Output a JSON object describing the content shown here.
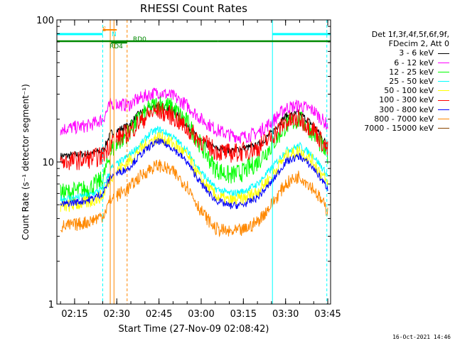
{
  "chart_data": {
    "type": "line",
    "title": "RHESSI Count Rates",
    "xlabel": "Start Time (27-Nov-09 02:08:42)",
    "ylabel": "Count Rate (s⁻¹ detector segment⁻¹)",
    "yscale": "log",
    "ylim": [
      1,
      100
    ],
    "xlim": [
      "02:08:42",
      "03:46:00"
    ],
    "x_ticks": [
      "02:15",
      "02:30",
      "02:45",
      "03:00",
      "03:15",
      "03:30",
      "03:45"
    ],
    "y_ticks": [
      "1",
      "10",
      "100"
    ],
    "legend_header": [
      "Det 1f,3f,4f,5f,6f,9f,",
      "FDecim 2, Att 0"
    ],
    "legend_position": "right",
    "x": [
      "02:10",
      "02:15",
      "02:20",
      "02:25",
      "02:28",
      "02:34",
      "02:38",
      "02:42",
      "02:45",
      "02:50",
      "02:55",
      "03:00",
      "03:05",
      "03:10",
      "03:15",
      "03:20",
      "03:25",
      "03:30",
      "03:35",
      "03:40",
      "03:45"
    ],
    "series": [
      {
        "name": "3 - 6 keV",
        "color": "#000000",
        "values": [
          11.0,
          11.2,
          11.5,
          12,
          16,
          18,
          22,
          24,
          25,
          23,
          18,
          14,
          12.5,
          12,
          12.5,
          13,
          16,
          21,
          22,
          18,
          13
        ]
      },
      {
        "name": "6 - 12 keV",
        "color": "#ff00ff",
        "values": [
          17,
          17.5,
          18,
          20,
          26,
          25,
          28,
          30,
          31,
          29,
          25,
          20,
          17,
          15.5,
          15,
          16,
          19,
          24,
          25,
          23,
          18
        ]
      },
      {
        "name": "12 - 25 keV",
        "color": "#00ff00",
        "values": [
          6,
          6.2,
          6.5,
          7.5,
          12,
          16,
          20,
          24,
          26,
          24,
          19,
          13,
          9,
          8,
          8.5,
          10,
          13,
          18,
          20,
          16,
          11
        ]
      },
      {
        "name": "25 - 50 keV",
        "color": "#00ffff",
        "values": [
          5.5,
          5.6,
          5.8,
          6.5,
          9,
          11,
          13,
          16,
          17,
          15,
          12,
          8.5,
          6.5,
          6,
          6.2,
          7,
          9,
          12,
          13,
          11,
          8
        ]
      },
      {
        "name": "50 - 100 keV",
        "color": "#ffff00",
        "values": [
          4.8,
          5,
          5.2,
          5.8,
          8,
          10,
          12,
          14,
          15,
          13.5,
          11,
          7.5,
          5.8,
          5.3,
          5.5,
          6.2,
          8,
          11,
          12,
          10,
          7
        ]
      },
      {
        "name": "100 - 300 keV",
        "color": "#ff0000",
        "values": [
          10,
          10.2,
          10.5,
          11,
          14,
          16,
          19,
          22,
          23,
          21,
          17,
          14,
          12,
          11.5,
          11.8,
          12.5,
          15,
          19,
          20,
          17,
          12
        ]
      },
      {
        "name": "300 - 800 keV",
        "color": "#0000ff",
        "values": [
          5,
          5.2,
          5.4,
          6,
          8,
          9,
          11,
          13,
          14,
          12.5,
          10,
          7,
          5.4,
          4.9,
          5,
          5.6,
          7.2,
          10,
          11,
          9,
          6.5
        ]
      },
      {
        "name": "800 - 7000 keV",
        "color": "#ff8800",
        "values": [
          3.5,
          3.6,
          3.8,
          4.2,
          5.5,
          6.5,
          7.8,
          9,
          9.5,
          8.5,
          6.8,
          4.5,
          3.4,
          3.2,
          3.3,
          3.8,
          5,
          7,
          8,
          6.5,
          4.5
        ]
      },
      {
        "name": "7000 - 15000 keV",
        "color": "#884400",
        "values": [
          null,
          null,
          null,
          null,
          null,
          null,
          null,
          null,
          null,
          null,
          null,
          null,
          null,
          null,
          null,
          null,
          null,
          null,
          null,
          null,
          null
        ]
      }
    ],
    "annotations": [
      {
        "text": "S",
        "color": "#ff8800"
      },
      {
        "text": "N",
        "color": "#00ffff"
      },
      {
        "text": "RD0",
        "color": "#008800"
      },
      {
        "text": "RD4",
        "color": "#008800"
      }
    ],
    "grid": false
  },
  "footer": {
    "timestamp": "16-Oct-2021 14:46"
  }
}
